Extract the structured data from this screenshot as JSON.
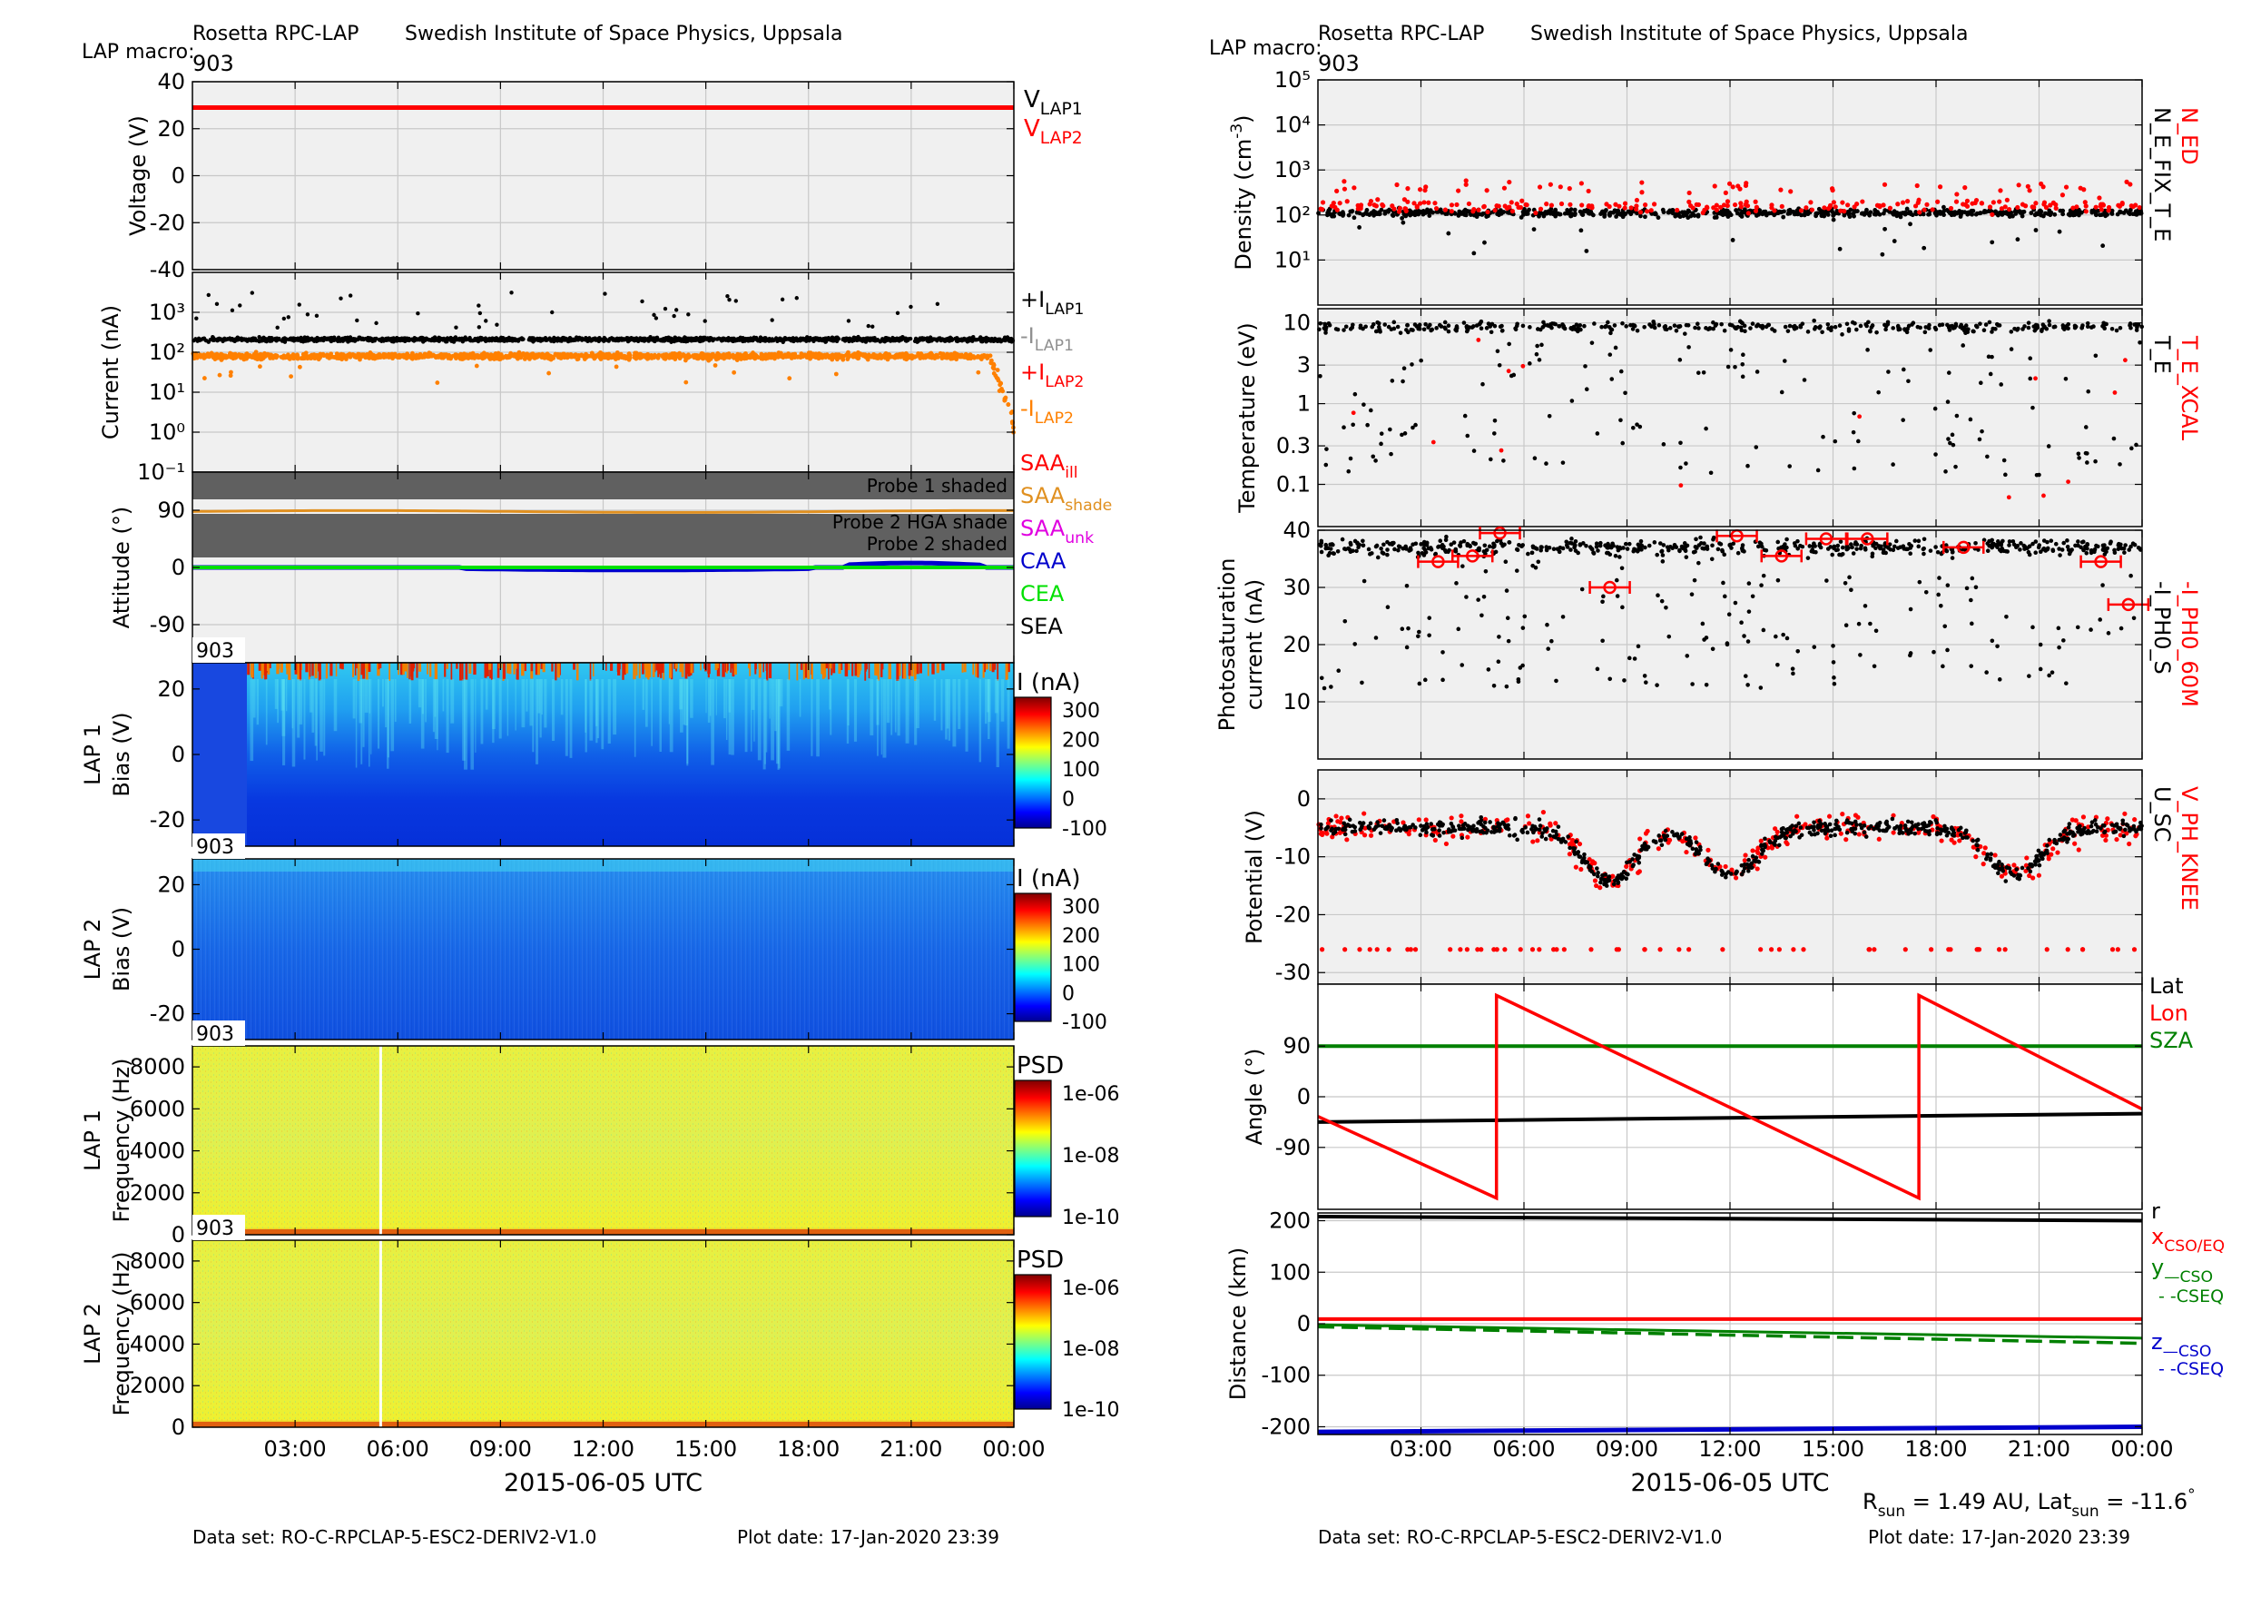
{
  "header": {
    "instrument": "Rosetta RPC-LAP",
    "institute": "Swedish Institute of Space Physics, Uppsala",
    "macro_label": "LAP macro:",
    "macro_value": "903"
  },
  "footer": {
    "dataset": "Data set: RO-C-RPCLAP-5-ESC2-DERIV2-V1.0",
    "plot_date": "Plot date: 17-Jan-2020 23:39",
    "rsun": "R",
    "rsun_sub": "sun",
    "rsun_value": " = 1.49 AU, Lat",
    "lat_sub": "sun",
    "lat_value": " = -11.6",
    "deg": "°"
  },
  "time_axis": {
    "ticks": [
      "03:00",
      "06:00",
      "09:00",
      "12:00",
      "15:00",
      "18:00",
      "21:00",
      "00:00"
    ],
    "label": "2015-06-05 UTC"
  },
  "colors": {
    "red": "#ff0000",
    "orange": "#ff8000",
    "green": "#008000",
    "lime": "#00e000",
    "blue": "#0000cc",
    "magenta": "#e000e0",
    "panel_bg": "#f0f0f0",
    "grid": "#c8c8c8",
    "shade": "#606060"
  },
  "chart_data": [
    {
      "id": "voltage",
      "type": "line",
      "ylabel": "Voltage (V)",
      "yticks": [
        40,
        20,
        0,
        -20,
        -40
      ],
      "ylim": [
        -40,
        40
      ],
      "series": [
        {
          "name": "V_LAP1",
          "value": 29
        },
        {
          "name": "V_LAP2",
          "value": 29
        }
      ],
      "legend": [
        {
          "main": "V",
          "sub": "LAP1",
          "color": "#000000"
        },
        {
          "main": "V",
          "sub": "LAP2",
          "color": "#ff0000"
        }
      ]
    },
    {
      "id": "current",
      "type": "scatter",
      "ylabel": "Current (nA)",
      "yscale": "log",
      "yticks": [
        "10³",
        "10²",
        "10¹",
        "10⁰",
        "10⁻¹"
      ],
      "ylim": [
        0.1,
        10000
      ],
      "legend": [
        {
          "main": "+I",
          "sub": "LAP1",
          "color": "#000000"
        },
        {
          "main": "-I",
          "sub": "LAP1",
          "color": "#909090"
        },
        {
          "main": "+I",
          "sub": "LAP2",
          "color": "#ff0000"
        },
        {
          "main": "-I",
          "sub": "LAP2",
          "color": "#ff8000"
        }
      ]
    },
    {
      "id": "attitude",
      "type": "line",
      "ylabel": "Attitude (°)",
      "yticks": [
        90,
        0,
        -90
      ],
      "ylim": [
        -150,
        150
      ],
      "shades": [
        "Probe 1 shaded",
        "Probe 2 HGA shade",
        "Probe 2 shaded"
      ],
      "legend": [
        {
          "main": "SAA",
          "sub": "ill",
          "color": "#ff0000"
        },
        {
          "main": "SAA",
          "sub": "shade",
          "color": "#e09020"
        },
        {
          "main": "SAA",
          "sub": "unk",
          "color": "#e000e0"
        },
        {
          "main": "CAA",
          "sub": "",
          "color": "#0000cc"
        },
        {
          "main": "CEA",
          "sub": "",
          "color": "#00e000"
        },
        {
          "main": "SEA",
          "sub": "",
          "color": "#000000"
        }
      ]
    },
    {
      "id": "lap1_sweep",
      "type": "heatmap",
      "macro": "903",
      "ylabel1": "LAP 1",
      "ylabel2": "Bias (V)",
      "yticks": [
        20,
        0,
        -20
      ],
      "ylim": [
        -28,
        28
      ],
      "cbar_title": "I (nA)",
      "cbar_ticks": [
        "300",
        "200",
        "100",
        "0",
        "-100"
      ]
    },
    {
      "id": "lap2_sweep",
      "type": "heatmap",
      "macro": "903",
      "ylabel1": "LAP 2",
      "ylabel2": "Bias (V)",
      "yticks": [
        20,
        0,
        -20
      ],
      "ylim": [
        -28,
        28
      ],
      "cbar_title": "I (nA)",
      "cbar_ticks": [
        "300",
        "200",
        "100",
        "0",
        "-100"
      ]
    },
    {
      "id": "lap1_psd",
      "type": "heatmap",
      "macro": "903",
      "ylabel1": "LAP 1",
      "ylabel2": "Frequency (Hz)",
      "yticks": [
        8000,
        6000,
        4000,
        2000,
        0
      ],
      "ylim": [
        0,
        9000
      ],
      "cbar_title": "PSD",
      "cbar_ticks": [
        "1e-06",
        "1e-08",
        "1e-10"
      ]
    },
    {
      "id": "lap2_psd",
      "type": "heatmap",
      "macro": "903",
      "ylabel1": "LAP 2",
      "ylabel2": "Frequency (Hz)",
      "yticks": [
        8000,
        6000,
        4000,
        2000,
        0
      ],
      "ylim": [
        0,
        9000
      ],
      "cbar_title": "PSD",
      "cbar_ticks": [
        "1e-06",
        "1e-08",
        "1e-10"
      ]
    },
    {
      "id": "density",
      "type": "scatter",
      "ylabel": "Density (cm",
      "ylabel_sup": "-3",
      "yscale": "log",
      "yticks": [
        "10⁵",
        "10⁴",
        "10³",
        "10²",
        "10¹"
      ],
      "ylim": [
        1,
        100000
      ],
      "legend": [
        {
          "main": "N_ED",
          "color": "#ff0000"
        },
        {
          "main": "N_E_FIX_T_E",
          "color": "#000000"
        }
      ]
    },
    {
      "id": "temperature",
      "type": "scatter",
      "ylabel": "Temperature (eV)",
      "yscale": "log",
      "yticks": [
        "10",
        "3",
        "1",
        "0.3",
        "0.1"
      ],
      "ylim": [
        0.03,
        15
      ],
      "legend": [
        {
          "main": "T_E_XCAL",
          "color": "#ff0000"
        },
        {
          "main": "T_E",
          "color": "#000000"
        }
      ]
    },
    {
      "id": "photosat",
      "type": "scatter",
      "ylabel1": "Photosaturation",
      "ylabel2": "current (nA)",
      "yticks": [
        40,
        30,
        20,
        10
      ],
      "ylim": [
        0,
        40
      ],
      "bottom_tick": "10",
      "legend": [
        {
          "main": "-I_PH0_60M",
          "color": "#ff0000"
        },
        {
          "main": "-I_PH0_S",
          "color": "#000000"
        }
      ]
    },
    {
      "id": "potential",
      "type": "scatter",
      "ylabel": "Potential (V)",
      "yticks": [
        0,
        -10,
        -20,
        -30
      ],
      "ylim": [
        -32,
        5
      ],
      "legend": [
        {
          "main": "V_PH_KNEE",
          "color": "#ff0000"
        },
        {
          "main": "U_SC",
          "color": "#000000"
        }
      ]
    },
    {
      "id": "angle",
      "type": "line",
      "ylabel": "Angle (°)",
      "yticks": [
        90,
        0,
        -90
      ],
      "ylim": [
        -200,
        200
      ],
      "series": [
        {
          "name": "Lat",
          "values_start": -45,
          "values_end": -30
        },
        {
          "name": "Lon"
        },
        {
          "name": "SZA",
          "value": 90
        }
      ],
      "legend": [
        {
          "main": "Lat",
          "color": "#000000"
        },
        {
          "main": "Lon",
          "color": "#ff0000"
        },
        {
          "main": "SZA",
          "color": "#008000"
        }
      ]
    },
    {
      "id": "distance",
      "type": "line",
      "ylabel": "Distance (km)",
      "yticks": [
        200,
        100,
        0,
        -100,
        -200
      ],
      "ylim": [
        -215,
        215
      ],
      "legend": [
        {
          "main": "r",
          "sub": "",
          "color": "#000000"
        },
        {
          "main": "x",
          "sub": "CSO/EQ",
          "color": "#ff0000"
        },
        {
          "main": "y",
          "sub": "—CSO",
          "color": "#008000"
        },
        {
          "main": "- -CSEQ",
          "sub": "",
          "color": "#008000"
        },
        {
          "main": "z",
          "sub": "—CSO",
          "color": "#0000cc"
        },
        {
          "main": "- -CSEQ",
          "sub": "",
          "color": "#0000cc"
        }
      ]
    }
  ]
}
